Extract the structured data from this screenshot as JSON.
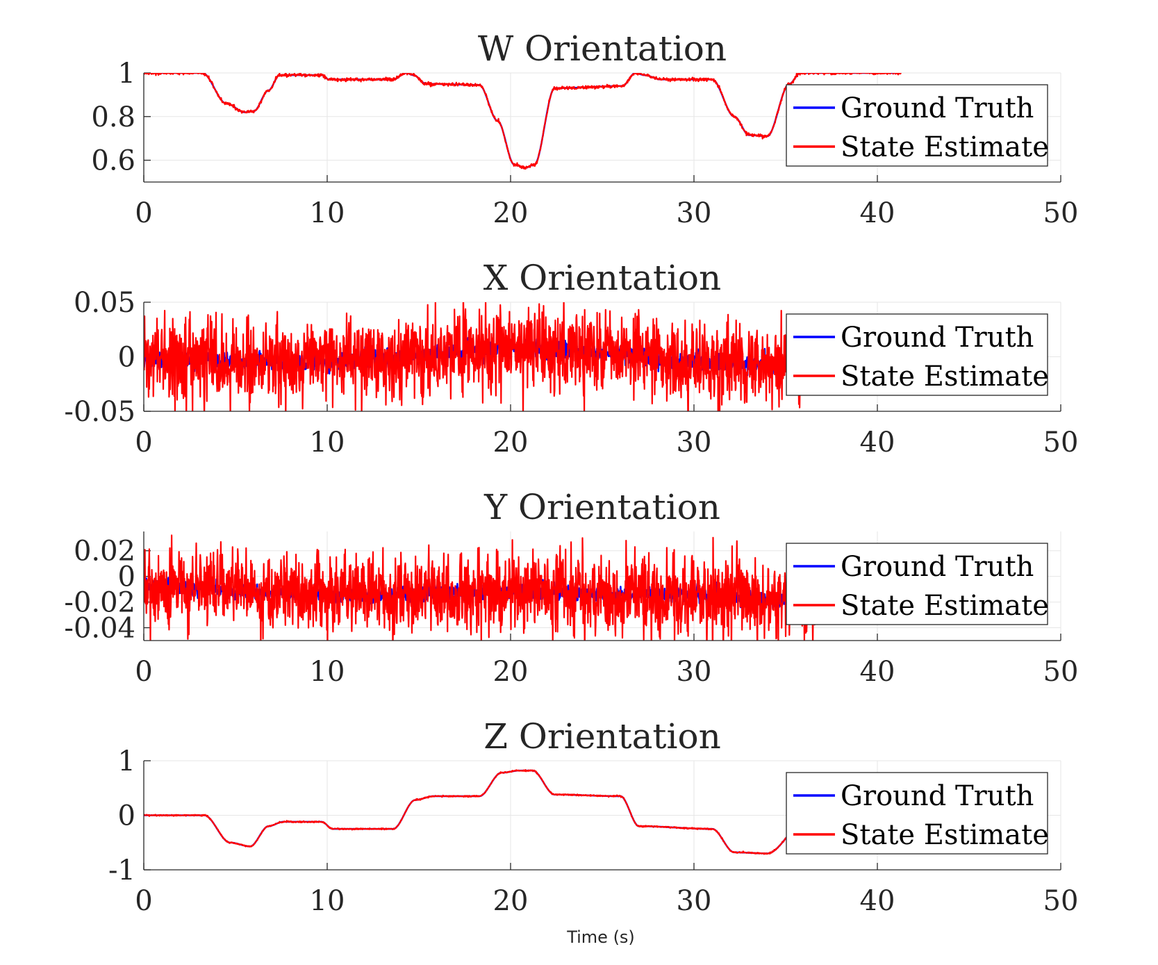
{
  "figure": {
    "xlabel": "Time (s)"
  },
  "chart_data": [
    {
      "type": "line",
      "title": "W Orientation",
      "xlim": [
        0,
        50
      ],
      "ylim": [
        0.5,
        1.0
      ],
      "xticks": [
        0,
        10,
        20,
        30,
        40,
        50
      ],
      "xtick_labels": [
        "0",
        "10",
        "20",
        "30",
        "40",
        "50"
      ],
      "yticks": [
        0.6,
        0.8,
        1.0
      ],
      "ytick_labels": [
        "0.6",
        "0.8",
        "1"
      ],
      "grid": true,
      "legend": {
        "location": "right",
        "entries": [
          "Ground Truth",
          "State Estimate"
        ]
      },
      "series": [
        {
          "name": "Ground Truth",
          "color": "#0000ff",
          "noise": 0,
          "seed": 11,
          "x": [
            0,
            3.2,
            4.5,
            5.5,
            6,
            6.8,
            7.4,
            9.7,
            10.1,
            13.6,
            14.3,
            14.7,
            15.4,
            18.3,
            19.3,
            20.2,
            20.8,
            21.3,
            22.4,
            26.1,
            26.8,
            27.3,
            28.2,
            31.0,
            32.2,
            33.0,
            34.0,
            35.2,
            35.8,
            41.3
          ],
          "y": [
            1.0,
            1.0,
            0.86,
            0.82,
            0.825,
            0.92,
            0.99,
            0.99,
            0.97,
            0.97,
            1.0,
            0.99,
            0.95,
            0.945,
            0.78,
            0.58,
            0.565,
            0.58,
            0.93,
            0.94,
            1.0,
            0.99,
            0.97,
            0.97,
            0.8,
            0.715,
            0.71,
            0.95,
            1.0,
            1.0
          ]
        },
        {
          "name": "State Estimate",
          "color": "#ff0000",
          "noise": 0.0035,
          "seed": 12,
          "x": [
            0,
            3.2,
            4.5,
            5.5,
            6,
            6.8,
            7.4,
            9.7,
            10.1,
            13.6,
            14.3,
            14.7,
            15.4,
            18.3,
            19.3,
            20.2,
            20.8,
            21.3,
            22.4,
            26.1,
            26.8,
            27.3,
            28.2,
            31.0,
            32.2,
            33.0,
            34.0,
            35.2,
            35.8,
            41.3
          ],
          "y": [
            1.0,
            1.0,
            0.86,
            0.82,
            0.825,
            0.92,
            0.99,
            0.99,
            0.97,
            0.97,
            1.0,
            0.99,
            0.95,
            0.945,
            0.78,
            0.58,
            0.565,
            0.58,
            0.93,
            0.94,
            1.0,
            0.99,
            0.97,
            0.97,
            0.8,
            0.715,
            0.71,
            0.95,
            1.0,
            1.0
          ]
        }
      ]
    },
    {
      "type": "line",
      "title": "X Orientation",
      "xlim": [
        0,
        50
      ],
      "ylim": [
        -0.05,
        0.05
      ],
      "xticks": [
        0,
        10,
        20,
        30,
        40,
        50
      ],
      "xtick_labels": [
        "0",
        "10",
        "20",
        "30",
        "40",
        "50"
      ],
      "yticks": [
        -0.05,
        0,
        0.05
      ],
      "ytick_labels": [
        "-0.05",
        "0",
        "0.05"
      ],
      "grid": true,
      "legend": {
        "location": "right",
        "entries": [
          "Ground Truth",
          "State Estimate"
        ]
      },
      "series": [
        {
          "name": "Ground Truth",
          "color": "#0000ff",
          "noise": 0.004,
          "seed": 21,
          "x": [
            0,
            10,
            20,
            25,
            30,
            36
          ],
          "y": [
            -0.003,
            -0.005,
            0.008,
            0.005,
            -0.005,
            -0.008
          ]
        },
        {
          "name": "State Estimate",
          "color": "#ff0000",
          "noise": 0.018,
          "seed": 22,
          "x": [
            0,
            10,
            20,
            25,
            30,
            36
          ],
          "y": [
            -0.003,
            -0.005,
            0.008,
            0.005,
            -0.005,
            -0.008
          ]
        }
      ]
    },
    {
      "type": "line",
      "title": "Y Orientation",
      "xlim": [
        0,
        50
      ],
      "ylim": [
        -0.05,
        0.035
      ],
      "xticks": [
        0,
        10,
        20,
        30,
        40,
        50
      ],
      "xtick_labels": [
        "0",
        "10",
        "20",
        "30",
        "40",
        "50"
      ],
      "yticks": [
        -0.04,
        -0.02,
        0,
        0.02
      ],
      "ytick_labels": [
        "-0.04",
        "-0.02",
        "0",
        "0.02"
      ],
      "grid": true,
      "legend": {
        "location": "right",
        "entries": [
          "Ground Truth",
          "State Estimate"
        ]
      },
      "series": [
        {
          "name": "Ground Truth",
          "color": "#0000ff",
          "noise": 0.003,
          "seed": 31,
          "x": [
            0,
            10,
            20,
            30,
            37
          ],
          "y": [
            -0.008,
            -0.015,
            -0.012,
            -0.015,
            -0.02
          ]
        },
        {
          "name": "State Estimate",
          "color": "#ff0000",
          "noise": 0.015,
          "seed": 32,
          "x": [
            0,
            10,
            20,
            30,
            37
          ],
          "y": [
            -0.008,
            -0.015,
            -0.012,
            -0.015,
            -0.02
          ]
        }
      ]
    },
    {
      "type": "line",
      "title": "Z Orientation",
      "xlim": [
        0,
        50
      ],
      "ylim": [
        -1,
        1
      ],
      "xticks": [
        0,
        10,
        20,
        30,
        40,
        50
      ],
      "xtick_labels": [
        "0",
        "10",
        "20",
        "30",
        "40",
        "50"
      ],
      "yticks": [
        -1,
        0,
        1
      ],
      "ytick_labels": [
        "-1",
        "0",
        "1"
      ],
      "grid": true,
      "legend": {
        "location": "right",
        "entries": [
          "Ground Truth",
          "State Estimate"
        ]
      },
      "series": [
        {
          "name": "Ground Truth",
          "color": "#0000ff",
          "noise": 0,
          "seed": 41,
          "x": [
            0,
            3.3,
            4.7,
            5.8,
            6.8,
            7.6,
            9.7,
            10.3,
            13.6,
            14.8,
            15.8,
            18.3,
            19.5,
            20.5,
            21.2,
            22.4,
            26.0,
            27.0,
            31.0,
            32.2,
            34.0,
            36.0
          ],
          "y": [
            0.0,
            0.0,
            -0.5,
            -0.57,
            -0.2,
            -0.12,
            -0.12,
            -0.25,
            -0.25,
            0.28,
            0.35,
            0.35,
            0.78,
            0.82,
            0.82,
            0.38,
            0.35,
            -0.2,
            -0.25,
            -0.68,
            -0.7,
            -0.15
          ]
        },
        {
          "name": "State Estimate",
          "color": "#ff0000",
          "noise": 0.006,
          "seed": 42,
          "x": [
            0,
            3.3,
            4.7,
            5.8,
            6.8,
            7.6,
            9.7,
            10.3,
            13.6,
            14.8,
            15.8,
            18.3,
            19.5,
            20.5,
            21.2,
            22.4,
            26.0,
            27.0,
            31.0,
            32.2,
            34.0,
            36.0
          ],
          "y": [
            0.0,
            0.0,
            -0.5,
            -0.57,
            -0.2,
            -0.12,
            -0.12,
            -0.25,
            -0.25,
            0.28,
            0.35,
            0.35,
            0.78,
            0.82,
            0.82,
            0.38,
            0.35,
            -0.2,
            -0.25,
            -0.68,
            -0.7,
            -0.15
          ]
        }
      ]
    }
  ]
}
